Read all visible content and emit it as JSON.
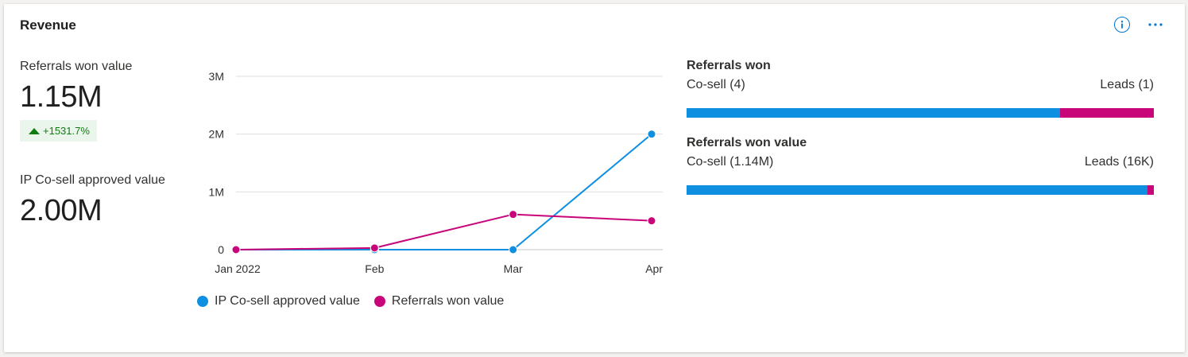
{
  "card": {
    "title": "Revenue"
  },
  "colors": {
    "series_ip": "#0f8fe0",
    "series_ref": "#c8067a",
    "accent": "#0078d4",
    "delta": "#107c10"
  },
  "icons": {
    "info": "info-icon",
    "more": "more-horizontal-icon",
    "delta": "triangle-up-icon"
  },
  "kpis": {
    "referrals_won_value": {
      "label": "Referrals won value",
      "value": "1.15M",
      "delta": "+1531.7%"
    },
    "ip_cosell_value": {
      "label": "IP Co-sell approved value",
      "value": "2.00M"
    }
  },
  "chart_data": {
    "type": "line",
    "categories": [
      "Jan 2022",
      "Feb",
      "Mar",
      "Apr"
    ],
    "series": [
      {
        "name": "IP Co-sell approved value",
        "values": [
          0,
          0,
          0,
          2000000
        ],
        "color": "#0f8fe0"
      },
      {
        "name": "Referrals won value",
        "values": [
          0,
          30000,
          610000,
          500000
        ],
        "color": "#c8067a"
      }
    ],
    "yticks": [
      "0",
      "1M",
      "2M",
      "3M"
    ],
    "ylim": [
      0,
      3000000
    ],
    "grid": true,
    "legend_position": "bottom"
  },
  "legend": {
    "ip": "IP Co-sell approved value",
    "ref": "Referrals won value"
  },
  "splits": [
    {
      "title": "Referrals won",
      "left_label": "Co-sell (4)",
      "right_label": "Leads (1)",
      "left_share": 0.8,
      "right_share": 0.2
    },
    {
      "title": "Referrals won value",
      "left_label": "Co-sell (1.14M)",
      "right_label": "Leads (16K)",
      "left_share": 0.986,
      "right_share": 0.014
    }
  ]
}
